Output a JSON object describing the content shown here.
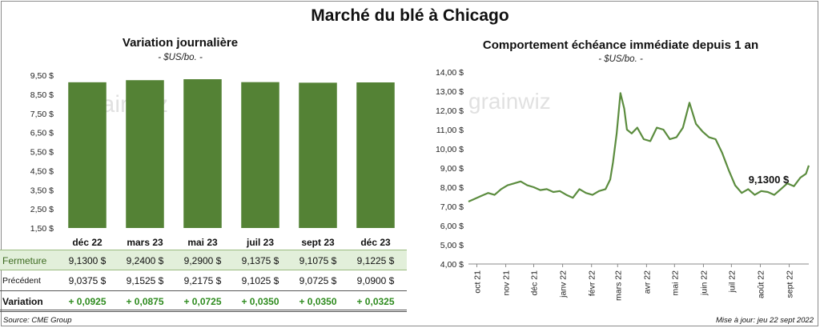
{
  "title": "Marché du blé à Chicago",
  "left": {
    "title": "Variation journalière",
    "unit": "- $US/bo. -",
    "watermark": "grainwiz"
  },
  "right": {
    "title": "Comportement échéance immédiate depuis 1 an",
    "unit": "- $US/bo. -",
    "watermark": "grainwiz",
    "last_value_label": "9,1300 $"
  },
  "table": {
    "rows": [
      {
        "label": "Fermeture",
        "values": [
          "9,1300",
          "9,2400",
          "9,2900",
          "9,1375",
          "9,1075",
          "9,1225"
        ],
        "suffix": "$"
      },
      {
        "label": "Précédent",
        "values": [
          "9,0375",
          "9,1525",
          "9,2175",
          "9,1025",
          "9,0725",
          "9,0900"
        ],
        "suffix": "$"
      },
      {
        "label": "Variation",
        "values": [
          "+ 0,0925",
          "+ 0,0875",
          "+ 0,0725",
          "+ 0,0350",
          "+ 0,0350",
          "+ 0,0325"
        ]
      }
    ]
  },
  "footer": {
    "source": "Source: CME Group",
    "update": "Mise à jour: jeu 22 sept 2022"
  },
  "colors": {
    "bar_fill": "#548235",
    "line": "#5b8c3e",
    "highlight_row": "#e2efda",
    "positive": "#2e8b1e"
  },
  "chart_data": [
    {
      "type": "bar",
      "title": "Variation journalière",
      "ylabel": "$US/bo.",
      "categories": [
        "déc 22",
        "mars 23",
        "mai 23",
        "juil 23",
        "sept 23",
        "déc 23"
      ],
      "values": [
        9.13,
        9.24,
        9.29,
        9.1375,
        9.1075,
        9.1225
      ],
      "ylim": [
        1.5,
        9.5
      ],
      "yticks": [
        1.5,
        2.5,
        3.5,
        4.5,
        5.5,
        6.5,
        7.5,
        8.5,
        9.5
      ],
      "ytick_labels": [
        "1,50 $",
        "2,50 $",
        "3,50 $",
        "4,50 $",
        "5,50 $",
        "6,50 $",
        "7,50 $",
        "8,50 $",
        "9,50 $"
      ],
      "grid": false
    },
    {
      "type": "line",
      "title": "Comportement échéance immédiate depuis 1 an",
      "ylabel": "$US/bo.",
      "ylim": [
        4,
        14
      ],
      "yticks": [
        4,
        5,
        6,
        7,
        8,
        9,
        10,
        11,
        12,
        13,
        14
      ],
      "ytick_labels": [
        "4,00 $",
        "5,00 $",
        "6,00 $",
        "7,00 $",
        "8,00 $",
        "9,00 $",
        "10,00 $",
        "11,00 $",
        "12,00 $",
        "13,00 $",
        "14,00 $"
      ],
      "x_tick_labels": [
        "oct 21",
        "nov 21",
        "déc 21",
        "janv 22",
        "févr 22",
        "mars 22",
        "avr 22",
        "mai 22",
        "juin 22",
        "juil 22",
        "août 22",
        "sept 22"
      ],
      "x_tick_dates": [
        "2021-10-01",
        "2021-11-01",
        "2021-12-01",
        "2022-01-01",
        "2022-02-01",
        "2022-03-01",
        "2022-04-01",
        "2022-05-01",
        "2022-06-01",
        "2022-07-01",
        "2022-08-01",
        "2022-09-01"
      ],
      "xlim": [
        "2021-09-22",
        "2022-09-22"
      ],
      "grid": false,
      "series": [
        {
          "dates": [
            "2021-09-22",
            "2021-09-29",
            "2021-10-06",
            "2021-10-13",
            "2021-10-20",
            "2021-10-27",
            "2021-11-03",
            "2021-11-10",
            "2021-11-17",
            "2021-11-24",
            "2021-12-01",
            "2021-12-08",
            "2021-12-15",
            "2021-12-22",
            "2021-12-29",
            "2022-01-05",
            "2022-01-12",
            "2022-01-19",
            "2022-01-26",
            "2022-02-02",
            "2022-02-09",
            "2022-02-16",
            "2022-02-21",
            "2022-02-24",
            "2022-02-28",
            "2022-03-04",
            "2022-03-08",
            "2022-03-11",
            "2022-03-16",
            "2022-03-22",
            "2022-03-29",
            "2022-04-05",
            "2022-04-12",
            "2022-04-19",
            "2022-04-26",
            "2022-05-03",
            "2022-05-10",
            "2022-05-17",
            "2022-05-24",
            "2022-05-31",
            "2022-06-07",
            "2022-06-14",
            "2022-06-21",
            "2022-06-28",
            "2022-07-05",
            "2022-07-12",
            "2022-07-19",
            "2022-07-26",
            "2022-08-02",
            "2022-08-09",
            "2022-08-16",
            "2022-08-23",
            "2022-08-30",
            "2022-09-06",
            "2022-09-13",
            "2022-09-19",
            "2022-09-22"
          ],
          "values": [
            7.25,
            7.4,
            7.55,
            7.7,
            7.6,
            7.9,
            8.1,
            8.2,
            8.3,
            8.1,
            8.0,
            7.85,
            7.9,
            7.75,
            7.8,
            7.6,
            7.45,
            7.9,
            7.7,
            7.6,
            7.8,
            7.9,
            8.4,
            9.3,
            10.8,
            12.9,
            12.1,
            11.0,
            10.8,
            11.1,
            10.5,
            10.4,
            11.1,
            11.0,
            10.5,
            10.6,
            11.1,
            12.4,
            11.3,
            10.9,
            10.6,
            10.5,
            9.8,
            8.9,
            8.1,
            7.7,
            7.9,
            7.6,
            7.8,
            7.75,
            7.6,
            7.9,
            8.2,
            8.05,
            8.5,
            8.7,
            9.13
          ]
        }
      ]
    }
  ]
}
